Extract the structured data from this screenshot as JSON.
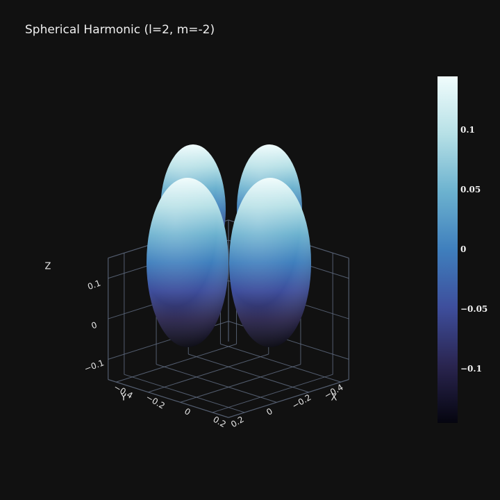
{
  "chart_data": {
    "type": "surface3d",
    "title": "Spherical Harmonic (l=2, m=-2)",
    "function": "Y(l=2, m=-2)",
    "axes": {
      "x": {
        "label": "X",
        "ticks": [
          "−0.4",
          "−0.2",
          "0",
          "0.2"
        ],
        "range": [
          -0.45,
          0.3
        ]
      },
      "y": {
        "label": "Y",
        "ticks": [
          "−0.4",
          "−0.2",
          "0",
          "0.2"
        ],
        "range": [
          -0.45,
          0.3
        ]
      },
      "z": {
        "label": "Z",
        "ticks": [
          "−0.1",
          "0",
          "0.1"
        ],
        "range": [
          -0.15,
          0.15
        ]
      }
    },
    "colorbar": {
      "range": [
        -0.145,
        0.145
      ],
      "ticks": [
        {
          "value": 0.1,
          "label": "0.1"
        },
        {
          "value": 0.05,
          "label": "0.05"
        },
        {
          "value": 0,
          "label": "0"
        },
        {
          "value": -0.05,
          "label": "−0.05"
        },
        {
          "value": -0.1,
          "label": "−0.1"
        }
      ],
      "colors": [
        "#05050f",
        "#2a2550",
        "#3e4e9c",
        "#3f7fbd",
        "#6cb2cf",
        "#b6e0e6",
        "#f0fcfc"
      ]
    },
    "grid": true,
    "background": "#111111",
    "grid_color": "#5f6b80"
  }
}
